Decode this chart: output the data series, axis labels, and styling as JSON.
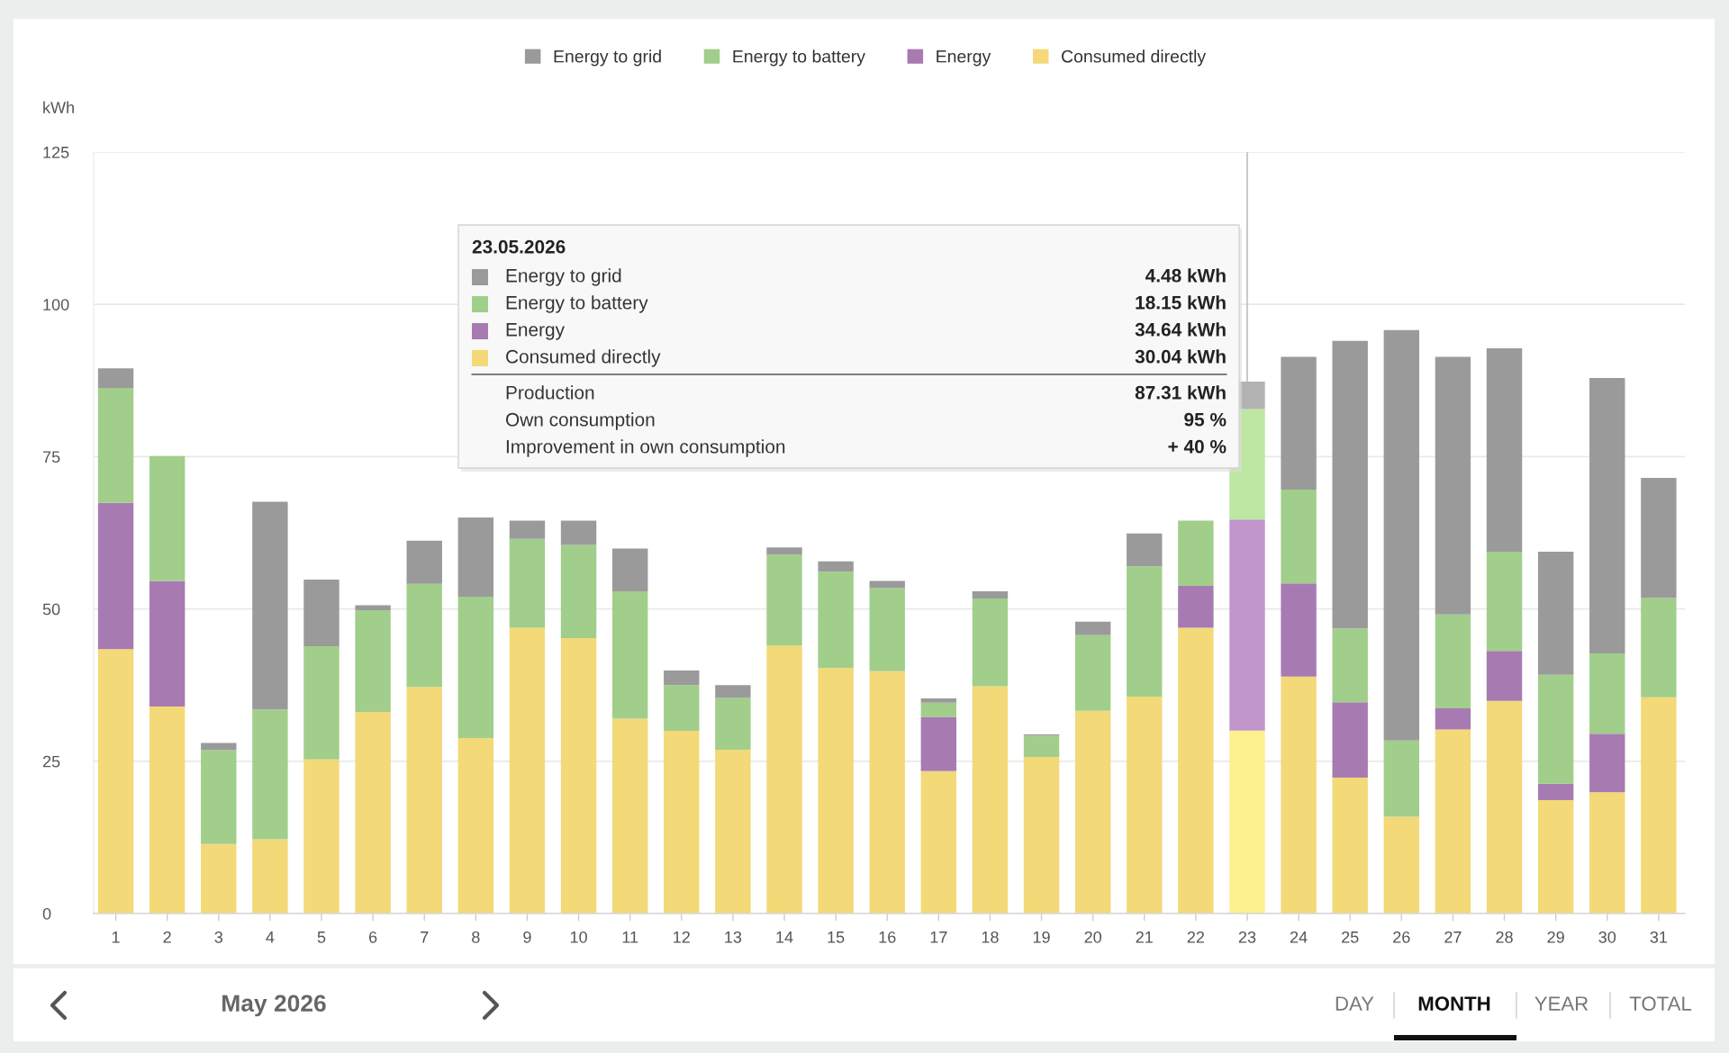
{
  "chart_data": {
    "type": "bar",
    "stacked": true,
    "categories": [
      "1",
      "2",
      "3",
      "4",
      "5",
      "6",
      "7",
      "8",
      "9",
      "10",
      "11",
      "12",
      "13",
      "14",
      "15",
      "16",
      "17",
      "18",
      "19",
      "20",
      "21",
      "22",
      "23",
      "24",
      "25",
      "26",
      "27",
      "28",
      "29",
      "30",
      "31"
    ],
    "series": [
      {
        "name": "Consumed directly",
        "color": "#f3d977",
        "colors": [
          "#f3d977",
          "#f3d977",
          "#f3d977",
          "#f3d977",
          "#f3d977",
          "#f3d977",
          "#f3d977",
          "#f3d977",
          "#f3d977",
          "#f3d977",
          "#f3d977",
          "#f3d977",
          "#f3d977",
          "#f3d977",
          "#f3d977",
          "#f3d977",
          "#f3d977",
          "#f3d977",
          "#f3d977",
          "#f3d977",
          "#f3d977",
          "#f3d977",
          "#fcf08f",
          "#f3d977",
          "#f3d977",
          "#f3d977",
          "#f3d977",
          "#f3d977",
          "#f3d977",
          "#f3d977",
          "#f3d977"
        ],
        "values": [
          43.4,
          34.0,
          11.4,
          12.2,
          25.3,
          33.1,
          37.2,
          28.8,
          46.9,
          45.2,
          32.0,
          30.0,
          26.9,
          44.0,
          40.3,
          39.8,
          23.4,
          37.3,
          25.7,
          33.3,
          35.6,
          46.9,
          30.04,
          38.9,
          22.3,
          15.9,
          30.2,
          34.9,
          18.6,
          19.9,
          35.5
        ]
      },
      {
        "name": "Energy",
        "color": "#a77bb1",
        "colors": [
          "#a77bb1",
          "#a77bb1",
          "#a77bb1",
          "#a77bb1",
          "#a77bb1",
          "#a77bb1",
          "#a77bb1",
          "#a77bb1",
          "#a77bb1",
          "#a77bb1",
          "#a77bb1",
          "#a77bb1",
          "#a77bb1",
          "#a77bb1",
          "#a77bb1",
          "#a77bb1",
          "#a77bb1",
          "#a77bb1",
          "#a77bb1",
          "#a77bb1",
          "#a77bb1",
          "#a77bb1",
          "#c096cb",
          "#a77bb1",
          "#a77bb1",
          "#a77bb1",
          "#a77bb1",
          "#a77bb1",
          "#a77bb1",
          "#a77bb1",
          "#a77bb1"
        ],
        "values": [
          24.0,
          20.6,
          null,
          null,
          null,
          null,
          null,
          null,
          null,
          null,
          null,
          null,
          null,
          null,
          null,
          null,
          8.9,
          null,
          null,
          null,
          null,
          6.9,
          34.64,
          15.3,
          12.4,
          null,
          3.5,
          8.2,
          2.7,
          9.6,
          null
        ]
      },
      {
        "name": "Energy to battery",
        "color": "#a1ce8a",
        "colors": [
          "#a1ce8a",
          "#a1ce8a",
          "#a1ce8a",
          "#a1ce8a",
          "#a1ce8a",
          "#a1ce8a",
          "#a1ce8a",
          "#a1ce8a",
          "#a1ce8a",
          "#a1ce8a",
          "#a1ce8a",
          "#a1ce8a",
          "#a1ce8a",
          "#a1ce8a",
          "#a1ce8a",
          "#a1ce8a",
          "#a1ce8a",
          "#a1ce8a",
          "#a1ce8a",
          "#a1ce8a",
          "#a1ce8a",
          "#a1ce8a",
          "#bde7a3",
          "#a1ce8a",
          "#a1ce8a",
          "#a1ce8a",
          "#a1ce8a",
          "#a1ce8a",
          "#a1ce8a",
          "#a1ce8a",
          "#a1ce8a"
        ],
        "values": [
          18.9,
          20.5,
          15.4,
          21.3,
          18.6,
          16.7,
          16.9,
          23.2,
          14.6,
          15.3,
          20.9,
          7.5,
          8.5,
          14.9,
          15.8,
          13.6,
          2.3,
          14.4,
          3.5,
          12.4,
          21.4,
          10.7,
          18.15,
          15.4,
          12.1,
          12.5,
          15.4,
          16.3,
          17.9,
          13.2,
          16.3
        ]
      },
      {
        "name": "Energy to grid",
        "color": "#9a9a9a",
        "colors": [
          "#9a9a9a",
          "#9a9a9a",
          "#9a9a9a",
          "#9a9a9a",
          "#9a9a9a",
          "#9a9a9a",
          "#9a9a9a",
          "#9a9a9a",
          "#9a9a9a",
          "#9a9a9a",
          "#9a9a9a",
          "#9a9a9a",
          "#9a9a9a",
          "#9a9a9a",
          "#9a9a9a",
          "#9a9a9a",
          "#9a9a9a",
          "#9a9a9a",
          "#9a9a9a",
          "#9a9a9a",
          "#9a9a9a",
          "#9a9a9a",
          "#b3b3b3",
          "#9a9a9a",
          "#9a9a9a",
          "#9a9a9a",
          "#9a9a9a",
          "#9a9a9a",
          "#9a9a9a",
          "#9a9a9a",
          "#9a9a9a"
        ],
        "values": [
          3.2,
          null,
          1.2,
          34.1,
          10.9,
          0.8,
          7.1,
          13.0,
          3.0,
          4.0,
          7.0,
          2.4,
          2.1,
          1.2,
          1.7,
          1.2,
          0.7,
          1.2,
          0.2,
          2.2,
          5.4,
          null,
          4.48,
          21.8,
          47.2,
          67.4,
          42.3,
          33.4,
          20.2,
          45.2,
          19.7
        ]
      }
    ],
    "ylabel": "kWh",
    "ylim": [
      0,
      125
    ],
    "yticks": [
      0,
      25,
      50,
      75,
      100,
      125
    ],
    "grid": "y",
    "legend": "top",
    "ref_lines": [
      {
        "axis": "x",
        "value": "23",
        "color": "#c4c4c4"
      }
    ],
    "annotations": [
      "23.05.2026",
      "4.48 kWh",
      "18.15 kWh",
      "34.64 kWh",
      "30.04 kWh",
      "Production",
      "87.31 kWh",
      "Own consumption",
      "95 %",
      "Improvement in own consumption",
      "+ 40 %",
      "May 2026",
      "DAY",
      "MONTH",
      "YEAR",
      "TOTAL"
    ]
  }
}
